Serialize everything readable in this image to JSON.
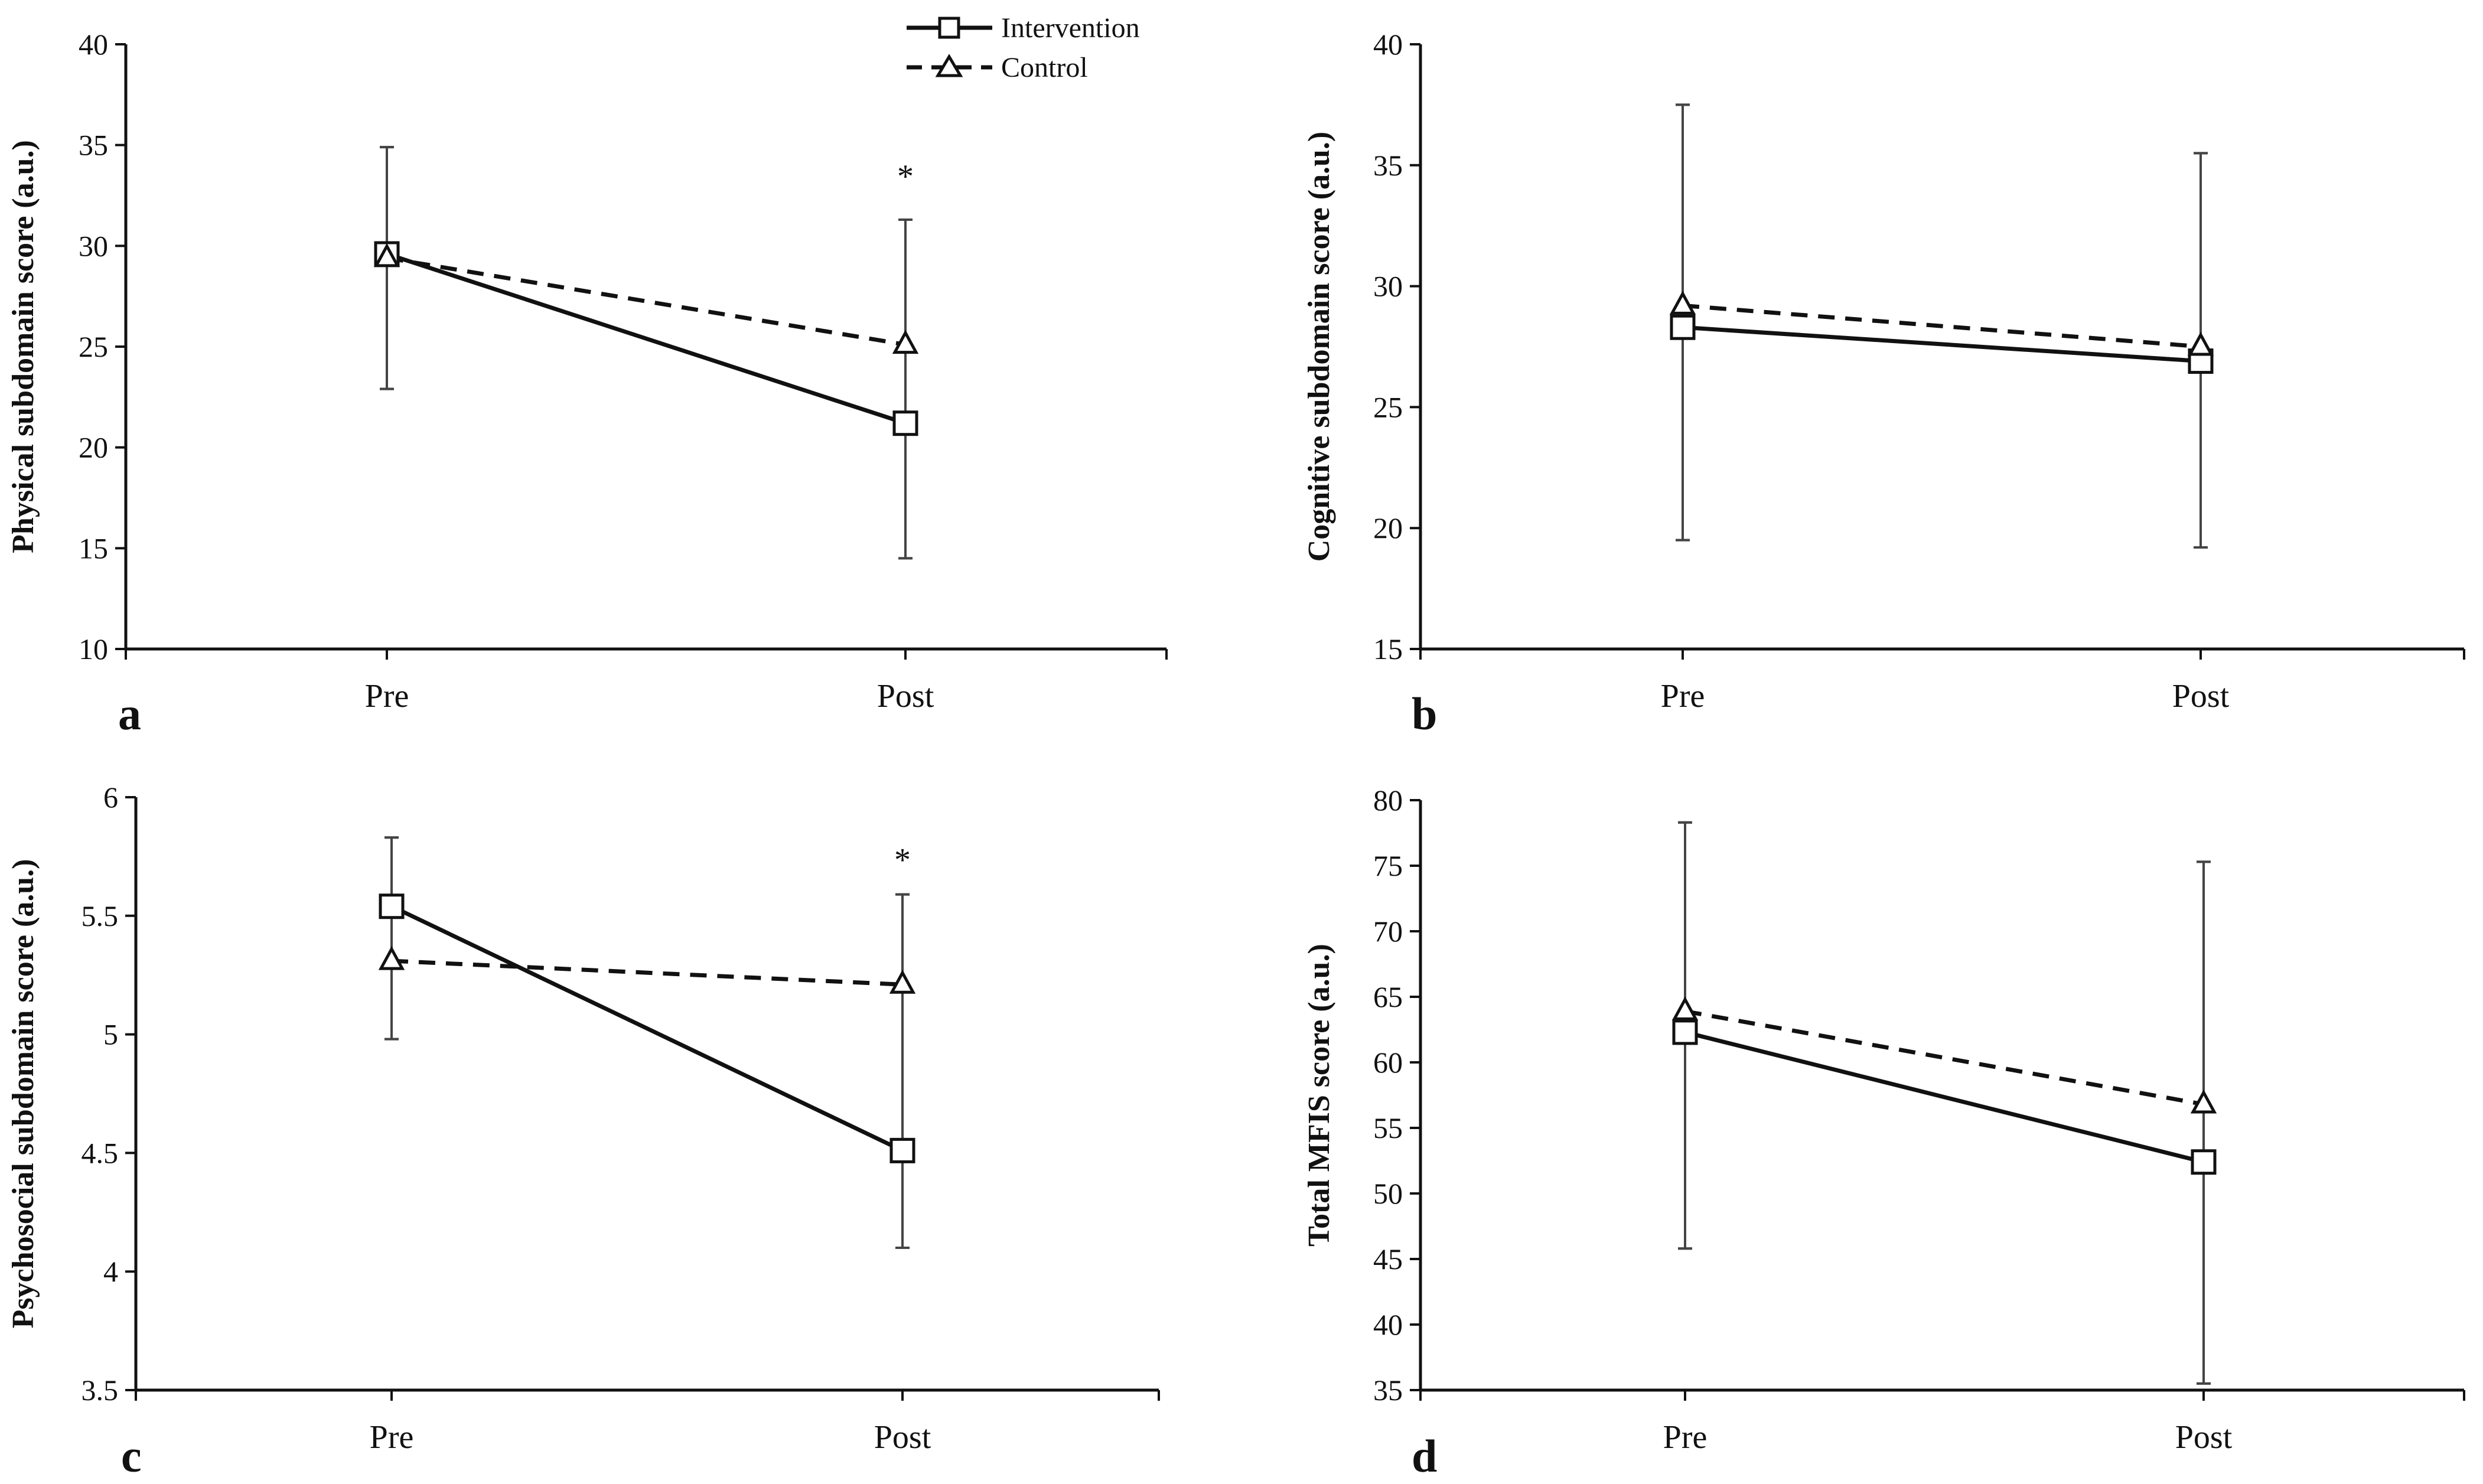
{
  "legend": {
    "intervention": "Intervention",
    "control": "Control"
  },
  "colors": {
    "line": "#111111",
    "errorbar": "#444444",
    "marker_fill": "#ffffff",
    "background": "#ffffff"
  },
  "chart_data": [
    {
      "panel_label": "a",
      "type": "line",
      "ylabel": "Physical subdomain score (a.u.)",
      "categories": [
        "Pre",
        "Post"
      ],
      "ylim": [
        10,
        40
      ],
      "yticks": [
        10,
        15,
        20,
        25,
        30,
        35,
        40
      ],
      "series": [
        {
          "name": "Intervention",
          "style": "solid",
          "marker": "square",
          "values": [
            29.6,
            21.2
          ],
          "err_upper": [
            34.9,
            31.3
          ],
          "err_lower": [
            22.9,
            14.5
          ]
        },
        {
          "name": "Control",
          "style": "dashed",
          "marker": "triangle",
          "values": [
            29.4,
            25.1
          ],
          "err_upper": [
            34.9,
            31.3
          ],
          "err_lower": [
            22.9,
            14.5
          ]
        }
      ],
      "annotations": [
        {
          "category": "Post",
          "y": 33.5,
          "text": "*"
        }
      ]
    },
    {
      "panel_label": "b",
      "type": "line",
      "ylabel": "Cognitive subdomain score (a.u.)",
      "categories": [
        "Pre",
        "Post"
      ],
      "ylim": [
        15,
        40
      ],
      "yticks": [
        15,
        20,
        25,
        30,
        35,
        40
      ],
      "series": [
        {
          "name": "Intervention",
          "style": "solid",
          "marker": "square",
          "values": [
            28.3,
            26.9
          ],
          "err_upper": [
            37.5,
            35.5
          ],
          "err_lower": [
            19.5,
            19.2
          ]
        },
        {
          "name": "Control",
          "style": "dashed",
          "marker": "triangle",
          "values": [
            29.2,
            27.5
          ],
          "err_upper": [
            37.5,
            35.5
          ],
          "err_lower": [
            19.5,
            19.2
          ]
        }
      ],
      "annotations": []
    },
    {
      "panel_label": "c",
      "type": "line",
      "ylabel": "Psychosocial subdomain score (a.u.)",
      "categories": [
        "Pre",
        "Post"
      ],
      "ylim": [
        3.5,
        6
      ],
      "yticks": [
        "3.5",
        "4",
        "4.5",
        "5",
        "5.5",
        "6"
      ],
      "series": [
        {
          "name": "Intervention",
          "style": "solid",
          "marker": "square",
          "values": [
            5.54,
            4.51
          ],
          "err_upper": [
            5.83,
            5.59
          ],
          "err_lower": [
            4.98,
            4.1
          ]
        },
        {
          "name": "Control",
          "style": "dashed",
          "marker": "triangle",
          "values": [
            5.31,
            5.21
          ],
          "err_upper": [
            5.83,
            5.59
          ],
          "err_lower": [
            4.98,
            4.1
          ]
        }
      ],
      "annotations": [
        {
          "category": "Post",
          "y": 5.74,
          "text": "*"
        }
      ]
    },
    {
      "panel_label": "d",
      "type": "line",
      "ylabel": "Total MFIS score (a.u.)",
      "categories": [
        "Pre",
        "Post"
      ],
      "ylim": [
        35,
        80
      ],
      "yticks": [
        35,
        40,
        45,
        50,
        55,
        60,
        65,
        70,
        75,
        80
      ],
      "series": [
        {
          "name": "Intervention",
          "style": "solid",
          "marker": "square",
          "values": [
            62.3,
            52.4
          ],
          "err_upper": [
            78.3,
            75.3
          ],
          "err_lower": [
            45.8,
            35.5
          ]
        },
        {
          "name": "Control",
          "style": "dashed",
          "marker": "triangle",
          "values": [
            63.9,
            56.8
          ],
          "err_upper": [
            78.3,
            75.3
          ],
          "err_lower": [
            45.8,
            35.5
          ]
        }
      ],
      "annotations": []
    }
  ]
}
